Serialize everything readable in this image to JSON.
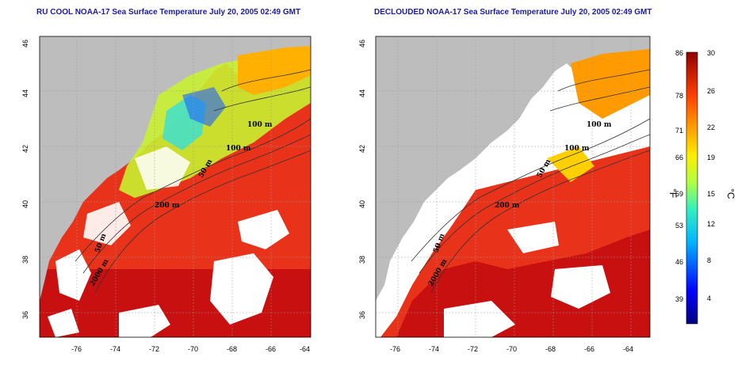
{
  "panels": [
    {
      "title": "RU COOL NOAA-17 Sea Surface Temperature July 20, 2005 02:49 GMT",
      "x_ticks": [
        "-76",
        "-74",
        "-72",
        "-70",
        "-68",
        "-66",
        "-64"
      ],
      "y_ticks": [
        "46",
        "44",
        "42",
        "40",
        "38",
        "36"
      ],
      "contour_labels": [
        "100 m",
        "100 m",
        "50 m",
        "200 m",
        "50 m",
        "2000 m"
      ]
    },
    {
      "title": "DECLOUDED NOAA-17 Sea Surface Temperature July 20, 2005 02:49 GMT",
      "x_ticks": [
        "-76",
        "-74",
        "-72",
        "-70",
        "-68",
        "-66",
        "-64"
      ],
      "y_ticks": [
        "46",
        "44",
        "42",
        "40",
        "38",
        "36"
      ],
      "contour_labels": [
        "100 m",
        "100 m",
        "50 m",
        "200 m",
        "50 m",
        "2000 m"
      ]
    }
  ],
  "colorbar": {
    "fahrenheit_ticks": [
      "86",
      "78",
      "71",
      "66",
      "59",
      "53",
      "46",
      "39"
    ],
    "celsius_ticks": [
      "30",
      "26",
      "22",
      "19",
      "15",
      "12",
      "8",
      "4"
    ],
    "fahrenheit_unit": "°F",
    "celsius_unit": "°C"
  },
  "colors": {
    "land": "#bdbdbd",
    "cloud": "#ffffff",
    "warm": "#e8331a",
    "hot": "#c81010",
    "title": "#1a1aa6"
  }
}
